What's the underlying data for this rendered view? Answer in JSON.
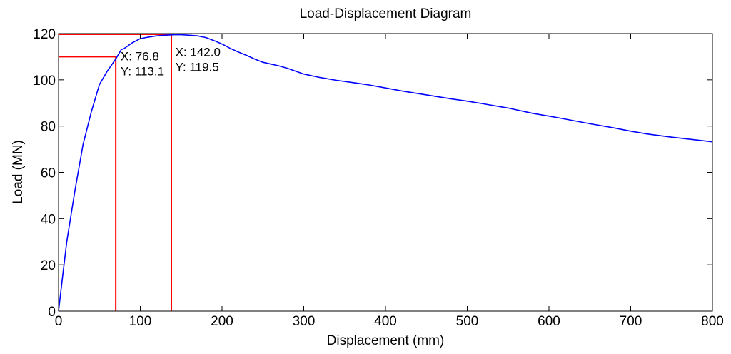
{
  "chart_data": {
    "type": "line",
    "title": "Load-Displacement Diagram",
    "xlabel": "Displacement (mm)",
    "ylabel": "Load (MN)",
    "xlim": [
      0,
      800
    ],
    "ylim": [
      0,
      120
    ],
    "xticks": [
      0,
      100,
      200,
      300,
      400,
      500,
      600,
      700,
      800
    ],
    "yticks": [
      0,
      20,
      40,
      60,
      80,
      100,
      120
    ],
    "grid": false,
    "series": [
      {
        "color": "#0000ff",
        "x": [
          0,
          5,
          10,
          20,
          30,
          40,
          50,
          60,
          70,
          76.8,
          80,
          90,
          100,
          110,
          120,
          130,
          142,
          150,
          160,
          170,
          180,
          190,
          200,
          210,
          220,
          230,
          240,
          250,
          260,
          270,
          280,
          300,
          320,
          340,
          360,
          380,
          400,
          420,
          450,
          480,
          500,
          520,
          550,
          580,
          600,
          620,
          650,
          680,
          700,
          720,
          750,
          780,
          800
        ],
        "y": [
          0,
          15,
          30,
          52,
          72,
          86,
          98,
          104,
          109,
          113.1,
          113.5,
          116,
          117.8,
          118.5,
          119,
          119.3,
          119.5,
          119.5,
          119.3,
          119,
          118.3,
          117,
          115.5,
          113.6,
          112,
          110.6,
          109,
          107.6,
          106.8,
          106,
          105,
          102.5,
          101,
          99.8,
          98.8,
          97.8,
          96.5,
          95.2,
          93.5,
          91.8,
          90.8,
          89.6,
          87.8,
          85.5,
          84.3,
          83,
          81,
          79.2,
          77.8,
          76.6,
          75.2,
          74,
          73.2
        ]
      }
    ],
    "reference_lines": {
      "color": "#ff0000",
      "items": [
        {
          "x": 70,
          "y": 110
        },
        {
          "x": 138,
          "y": 119.7
        }
      ]
    },
    "datatips": [
      {
        "x": 76.8,
        "y": 113.1,
        "x_text": "X: 76.8",
        "y_text": "Y: 113.1"
      },
      {
        "x": 142.0,
        "y": 119.5,
        "x_text": "X: 142.0",
        "y_text": "Y: 119.5"
      }
    ]
  }
}
